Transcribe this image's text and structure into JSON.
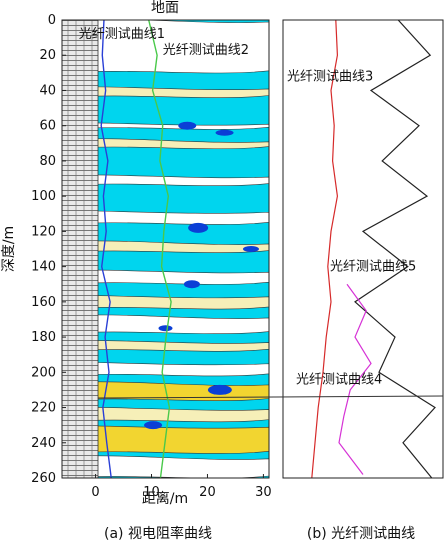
{
  "chart_data": [
    {
      "panel": "a",
      "type": "heatmap",
      "title": "地面",
      "xlabel": "距离/m",
      "ylabel": "深度/m",
      "x_ticks": [
        "0",
        "10",
        "20",
        "30"
      ],
      "y_ticks": [
        "0",
        "20",
        "40",
        "60",
        "80",
        "100",
        "120",
        "140",
        "160",
        "180",
        "200",
        "220",
        "240",
        "260"
      ],
      "xlim": [
        -6,
        31
      ],
      "ylim": [
        0,
        260
      ],
      "grid": false,
      "caption": "(a)  视电阻率曲线",
      "annotations": [
        {
          "text": "光纤测试曲线1",
          "x": -3,
          "y": 8
        },
        {
          "text": "光纤测试曲线2",
          "x": 12,
          "y": 17
        }
      ],
      "colors": {
        "background_cyan": "#00d5ee",
        "low_blue": "#0b3fd6",
        "white_band": "#ffffff",
        "yellow_band": "#f2d530",
        "cream_band": "#f6efb8",
        "fiber1": "#2a3fd6",
        "fiber2": "#49c94a"
      },
      "series": [
        {
          "name": "光纤测试曲线1",
          "x": [
            1.5,
            1.2,
            1.8,
            1.0,
            2.2,
            1.4,
            1.9,
            1.1,
            2.6,
            1.7,
            2.4,
            1.3,
            2.0,
            2.8
          ],
          "y": [
            0,
            20,
            40,
            60,
            80,
            100,
            120,
            140,
            160,
            180,
            200,
            220,
            240,
            260
          ]
        },
        {
          "name": "光纤测试曲线2",
          "x": [
            9.5,
            11.0,
            10.2,
            12.0,
            11.5,
            13.0,
            12.2,
            11.8,
            13.5,
            12.6,
            11.9,
            13.2,
            12.4,
            11.6
          ],
          "y": [
            0,
            20,
            40,
            60,
            80,
            100,
            120,
            140,
            160,
            180,
            200,
            220,
            240,
            260
          ]
        }
      ]
    },
    {
      "panel": "b",
      "type": "line",
      "caption": "(b)  光纤测试曲线",
      "ylim": [
        0,
        260
      ],
      "annotations": [
        {
          "text": "光纤测试曲线3",
          "y": 32
        },
        {
          "text": "光纤测试曲线5",
          "y": 140
        },
        {
          "text": "光纤测试曲线4",
          "y": 204
        }
      ],
      "colors": {
        "fiber3": "#222222",
        "fiber4": "#d632d6",
        "fiber5": "#d62a2a"
      },
      "series": [
        {
          "name": "光纤测试曲线3",
          "x": [
            0.72,
            0.92,
            0.55,
            0.85,
            0.62,
            0.9,
            0.5,
            0.78,
            0.45,
            0.7,
            0.6,
            0.95,
            0.75,
            0.93
          ],
          "y": [
            0,
            20,
            40,
            60,
            80,
            100,
            120,
            140,
            160,
            180,
            200,
            220,
            240,
            260
          ]
        },
        {
          "name": "光纤测试曲线5",
          "x": [
            0.33,
            0.34,
            0.3,
            0.32,
            0.31,
            0.34,
            0.3,
            0.28,
            0.3,
            0.27,
            0.25,
            0.22,
            0.2,
            0.18
          ],
          "y": [
            0,
            20,
            40,
            60,
            80,
            100,
            120,
            140,
            160,
            180,
            200,
            220,
            240,
            260
          ]
        },
        {
          "name": "光纤测试曲线4",
          "x": [
            0.4,
            0.52,
            0.45,
            0.55,
            0.42,
            0.38,
            0.35,
            0.5
          ],
          "y": [
            150,
            165,
            180,
            195,
            210,
            225,
            240,
            258
          ]
        }
      ]
    }
  ]
}
